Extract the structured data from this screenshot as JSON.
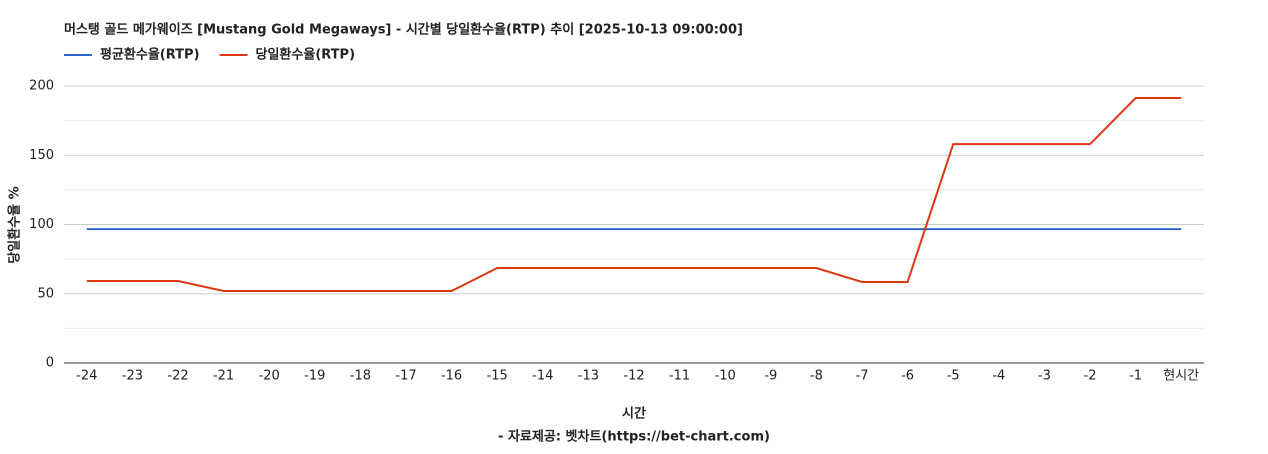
{
  "chart_data": {
    "type": "line",
    "title": "머스탱 골드 메가웨이즈 [Mustang Gold Megaways] - 시간별 당일환수율(RTP) 추이 [2025-10-13 09:00:00]",
    "x_label": "시간",
    "y_label": "당일환수율 %",
    "source": "- 자료제공: 벳차트(https://bet-chart.com)",
    "categories": [
      "-24",
      "-23",
      "-22",
      "-21",
      "-20",
      "-19",
      "-18",
      "-17",
      "-16",
      "-15",
      "-14",
      "-13",
      "-12",
      "-11",
      "-10",
      "-9",
      "-8",
      "-7",
      "-6",
      "-5",
      "-4",
      "-3",
      "-2",
      "-1",
      "현시간"
    ],
    "series": [
      {
        "name": "평균환수율(RTP)",
        "color": "#3366cc",
        "values": [
          96.7,
          96.7,
          96.7,
          96.7,
          96.7,
          96.7,
          96.7,
          96.7,
          96.7,
          96.7,
          96.7,
          96.7,
          96.7,
          96.7,
          96.7,
          96.7,
          96.7,
          96.7,
          96.7,
          96.7,
          96.7,
          96.7,
          96.7,
          96.7,
          96.7
        ]
      },
      {
        "name": "당일환수율(RTP)",
        "color": "#dc3912",
        "values": [
          59.2,
          59.2,
          59.2,
          52,
          52,
          52,
          52,
          52,
          52,
          68.6,
          68.6,
          68.6,
          68.6,
          68.6,
          68.6,
          68.6,
          68.6,
          58.5,
          58.5,
          158,
          158,
          158,
          158,
          191.3,
          191.3
        ]
      }
    ],
    "ylim": [
      0,
      200
    ],
    "yticks": [
      0,
      50,
      100,
      150,
      200
    ],
    "grid": true
  }
}
